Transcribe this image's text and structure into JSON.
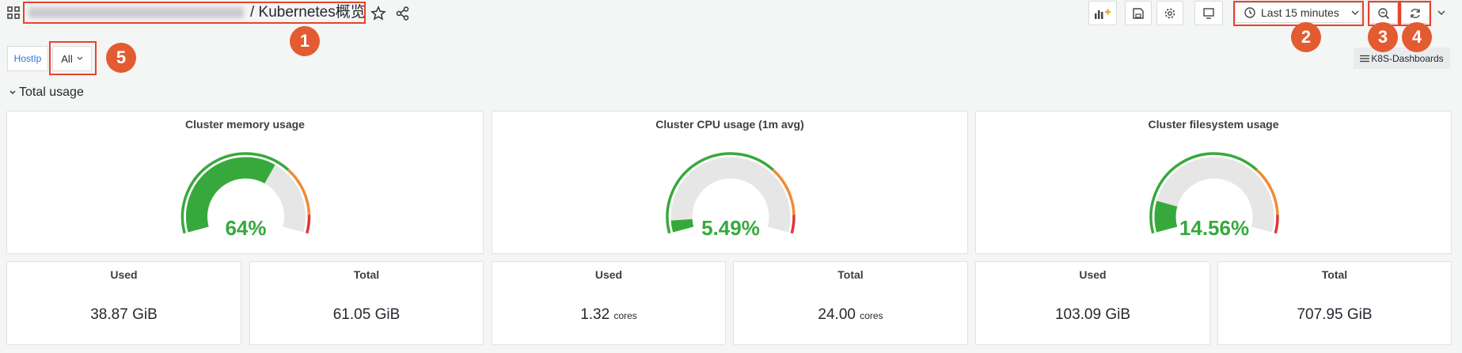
{
  "header": {
    "breadcrumb": "/ Kubernetes概览",
    "time_range": "Last 15 minutes"
  },
  "variables": {
    "label": "HostIp",
    "value": "All"
  },
  "dashboards_link": "K8S-Dashboards",
  "row": {
    "title": "Total usage"
  },
  "gauges": [
    {
      "title": "Cluster memory usage",
      "value": 64,
      "value_label": "64%",
      "range": [
        0,
        100
      ]
    },
    {
      "title": "Cluster CPU usage (1m avg)",
      "value": 5.49,
      "value_label": "5.49%",
      "range": [
        0,
        100
      ]
    },
    {
      "title": "Cluster filesystem usage",
      "value": 14.56,
      "value_label": "14.56%",
      "range": [
        0,
        100
      ]
    }
  ],
  "stats": [
    {
      "title": "Used",
      "value": "38.87",
      "unit": "GiB"
    },
    {
      "title": "Total",
      "value": "61.05",
      "unit": "GiB"
    },
    {
      "title": "Used",
      "value": "1.32",
      "unit": "cores"
    },
    {
      "title": "Total",
      "value": "24.00",
      "unit": "cores"
    },
    {
      "title": "Used",
      "value": "103.09",
      "unit": "GiB"
    },
    {
      "title": "Total",
      "value": "707.95",
      "unit": "GiB"
    }
  ],
  "annotations": [
    "1",
    "2",
    "3",
    "4",
    "5"
  ]
}
